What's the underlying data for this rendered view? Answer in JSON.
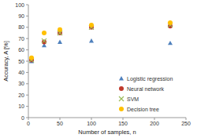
{
  "chart_data": {
    "type": "scatter",
    "x_label": "Number of samples, n",
    "y_label": "Accuracy, A [%]",
    "x": [
      5,
      25,
      50,
      100,
      225
    ],
    "series": [
      {
        "name": "Logistic regression",
        "color": "#4f81bd",
        "marker": "triangle",
        "values": [
          50,
          64,
          67,
          68,
          66
        ]
      },
      {
        "name": "Neural network",
        "color": "#c0392b",
        "marker": "circle",
        "values": [
          51,
          67,
          75,
          80,
          81
        ]
      },
      {
        "name": "SVM",
        "color": "#9bbb59",
        "marker": "x",
        "values": [
          51,
          68,
          75,
          80,
          82
        ]
      },
      {
        "name": "Decision tree",
        "color": "#ffc000",
        "marker": "circle",
        "values": [
          53,
          75,
          78,
          82,
          84
        ]
      }
    ],
    "xlim": [
      0,
      250
    ],
    "xticks": [
      0,
      50,
      100,
      150,
      200,
      250
    ],
    "ylim": [
      0,
      100
    ],
    "yticks": [
      0,
      10,
      20,
      30,
      40,
      50,
      60,
      70,
      80,
      90,
      100
    ],
    "grid": false,
    "legend": "lower right"
  }
}
